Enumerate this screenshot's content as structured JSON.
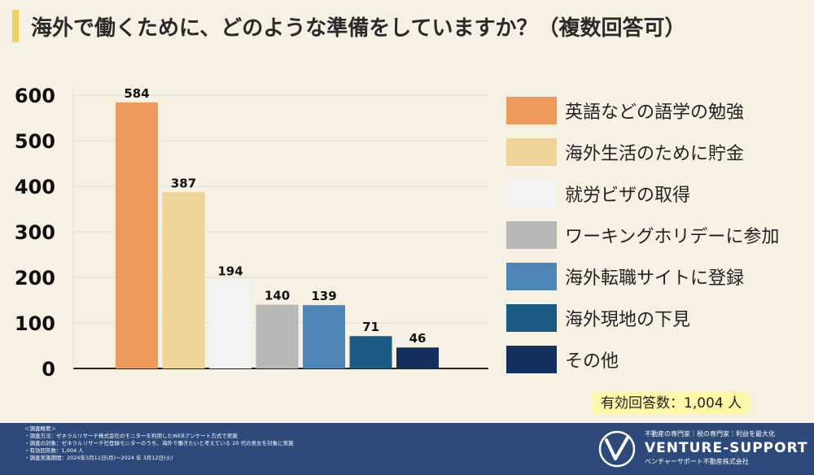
{
  "title": "海外で働くために、どのような準備をしていますか？（複数回答可）",
  "chart_data": {
    "type": "bar",
    "title": "海外で働くために、どのような準備をしていますか？（複数回答可）",
    "categories": [
      "英語などの語学の勉強",
      "海外生活のために貯金",
      "就労ビザの取得",
      "ワーキングホリデーに参加",
      "海外転職サイトに登録",
      "海外現地の下見",
      "その他"
    ],
    "values": [
      584,
      387,
      194,
      140,
      139,
      71,
      46
    ],
    "colors": [
      "#ee9a5c",
      "#eed597",
      "#f3f3f3",
      "#b8b8b8",
      "#4e84b6",
      "#1c5a86",
      "#15305c"
    ],
    "ylim": [
      0,
      600
    ],
    "yticks": [
      0,
      100,
      200,
      300,
      400,
      500,
      600
    ],
    "xlabel": "",
    "ylabel": "",
    "legend_position": "right"
  },
  "total": "有効回答数：1,004 人",
  "footer": {
    "notes": [
      "＜調査概要＞",
      "・調査方法：ゼネラルリサーチ株式会社のモニターを利用したWEBアンケート方式で実施",
      "・調査の対象：ゼネラルリサーチ社登録モニターのうち、海外で働きたいと考えている 20 代の男女を対象に実施",
      "・有効回答数：1,004 人",
      "・調査実施期間：2024年3月11日(月)～2024 年 3月12日(火)"
    ],
    "tagline": "不動産の専門家｜税の専門家｜利益を最大化",
    "brand": "VENTURE-SUPPORT",
    "company": "ベンチャーサポート不動産株式会社"
  }
}
